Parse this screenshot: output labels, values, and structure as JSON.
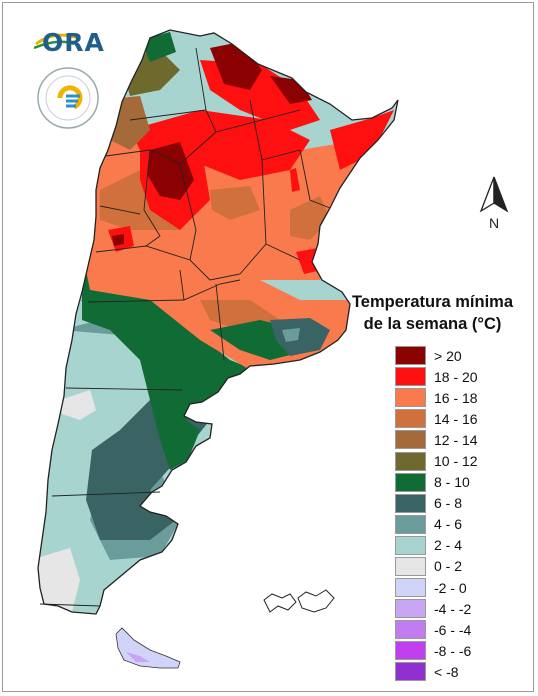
{
  "map": {
    "title_line1": "Temperatura mínima",
    "title_line2": "de la semana (°C)",
    "north_label": "N",
    "logo_text": "ORA",
    "legend": [
      {
        "label": "> 20",
        "color": "#8b0000"
      },
      {
        "label": "18 - 20",
        "color": "#ff1010"
      },
      {
        "label": "16 - 18",
        "color": "#f97a4c"
      },
      {
        "label": "14 - 16",
        "color": "#d0703c"
      },
      {
        "label": "12 - 14",
        "color": "#a46a3a"
      },
      {
        "label": "10 - 12",
        "color": "#6e6a2e"
      },
      {
        "label": "8 - 10",
        "color": "#116b35"
      },
      {
        "label": "6 - 8",
        "color": "#3a6464"
      },
      {
        "label": "4 - 6",
        "color": "#6b9c9c"
      },
      {
        "label": "2 - 4",
        "color": "#a8d4d0"
      },
      {
        "label": "0 - 2",
        "color": "#e6e6e6"
      },
      {
        "label": "-2 - 0",
        "color": "#d0d4f8"
      },
      {
        "label": "-4 - -2",
        "color": "#c8a6f4"
      },
      {
        "label": "-6 - -4",
        "color": "#c07cf0"
      },
      {
        "label": "-8 - -6",
        "color": "#c040f0"
      },
      {
        "label": "< -8",
        "color": "#9030d0"
      }
    ]
  }
}
